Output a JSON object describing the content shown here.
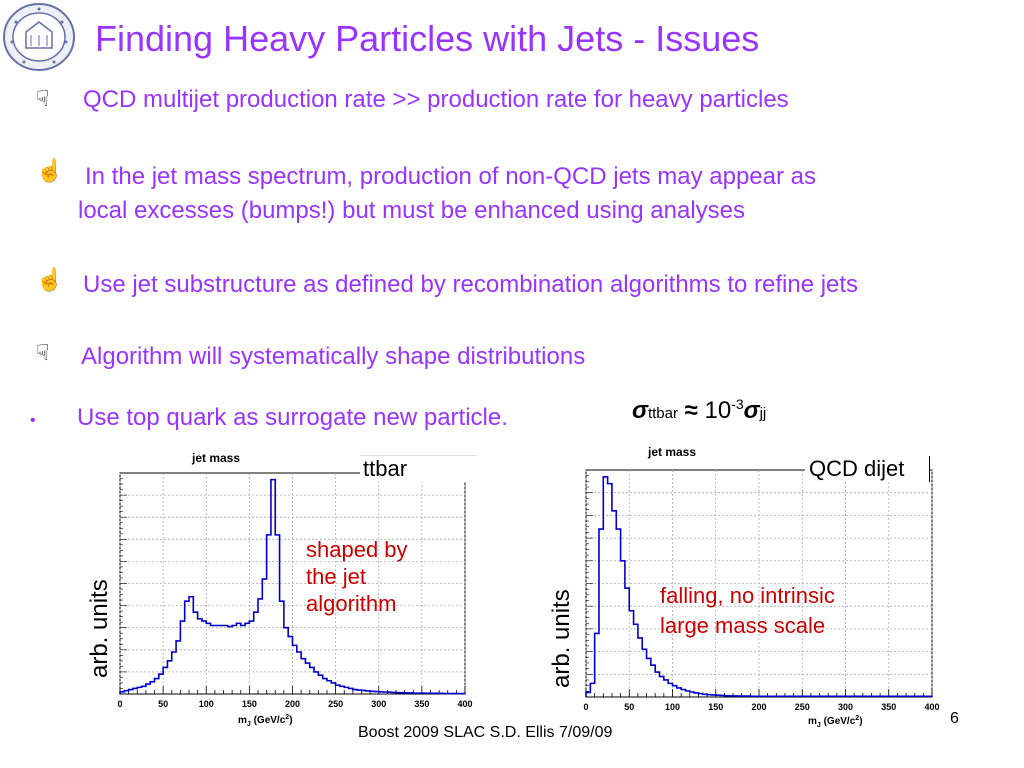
{
  "title": "Finding Heavy Particles with Jets - Issues",
  "bullets": [
    {
      "icon": "thumbs-down-icon",
      "text": "QCD multijet production rate >> production rate for heavy particles"
    },
    {
      "icon": "thumbs-up-icon",
      "line1": "In the jet mass spectrum, production of non-QCD jets may appear as",
      "line2": "local excesses (bumps!) but must be enhanced using analyses"
    },
    {
      "icon": "thumbs-up-icon",
      "text": "Use jet substructure as defined by recombination algorithms to refine jets"
    },
    {
      "icon": "thumbs-down-icon",
      "text": "Algorithm will systematically shape distributions"
    }
  ],
  "sub_bullet": {
    "marker": "•",
    "text": "Use top quark as surrogate new particle."
  },
  "sigma_relation": {
    "sigma": "σ",
    "sub_left": "ttbar",
    "approx": "≈",
    "base": "10",
    "exp": "-3",
    "sub_right": "jj"
  },
  "annotations": {
    "left": [
      "shaped by",
      "the jet",
      "algorithm"
    ],
    "right": [
      "falling, no intrinsic",
      "large mass scale"
    ]
  },
  "footer": {
    "text": "Boost 2009  SLAC     S.D. Ellis    7/09/09",
    "page": "6"
  },
  "colors": {
    "title": "#9933ff",
    "annotation": "#cc0000",
    "histogram": "#0000cc"
  },
  "chart_data": [
    {
      "type": "area",
      "title": "jet mass",
      "label": "ttbar",
      "xlabel": "m_J (GeV/c²)",
      "xlabel_main": "m",
      "xlabel_sub": "J",
      "xlabel_rest": " (GeV/c",
      "xlabel_sup": "2",
      "xlabel_close": ")",
      "ylabel": "arb. units",
      "xlim": [
        0,
        400
      ],
      "ylim": [
        0,
        1
      ],
      "xticks": [
        0,
        50,
        100,
        150,
        200,
        250,
        300,
        350,
        400
      ],
      "grid": true,
      "bins_x": [
        0,
        5,
        10,
        15,
        20,
        25,
        30,
        35,
        40,
        45,
        50,
        55,
        60,
        65,
        70,
        75,
        80,
        85,
        90,
        95,
        100,
        105,
        110,
        115,
        120,
        125,
        130,
        135,
        140,
        145,
        150,
        155,
        160,
        165,
        170,
        175,
        180,
        185,
        190,
        195,
        200,
        205,
        210,
        215,
        220,
        225,
        230,
        235,
        240,
        245,
        250,
        255,
        260,
        265,
        270,
        275,
        280,
        285,
        290,
        295,
        300,
        305,
        310,
        315,
        320,
        325,
        330,
        335,
        340,
        345,
        350,
        355,
        360,
        365,
        370,
        375,
        380,
        385,
        390,
        395
      ],
      "values": [
        0.01,
        0.015,
        0.02,
        0.025,
        0.03,
        0.035,
        0.045,
        0.055,
        0.07,
        0.09,
        0.12,
        0.15,
        0.19,
        0.24,
        0.33,
        0.42,
        0.44,
        0.37,
        0.34,
        0.33,
        0.32,
        0.31,
        0.31,
        0.31,
        0.31,
        0.305,
        0.31,
        0.32,
        0.31,
        0.32,
        0.33,
        0.37,
        0.43,
        0.52,
        0.72,
        0.97,
        0.72,
        0.42,
        0.3,
        0.26,
        0.22,
        0.19,
        0.16,
        0.14,
        0.12,
        0.1,
        0.085,
        0.07,
        0.06,
        0.05,
        0.04,
        0.035,
        0.03,
        0.025,
        0.02,
        0.018,
        0.016,
        0.014,
        0.012,
        0.011,
        0.01,
        0.009,
        0.008,
        0.007,
        0.006,
        0.006,
        0.005,
        0.005,
        0.004,
        0.004,
        0.004,
        0.003,
        0.003,
        0.003,
        0.003,
        0.002,
        0.002,
        0.002,
        0.002,
        0.002
      ]
    },
    {
      "type": "area",
      "title": "jet mass",
      "label": "QCD dijet",
      "xlabel": "m_J (GeV/c²)",
      "xlabel_main": "m",
      "xlabel_sub": "J",
      "xlabel_rest": " (GeV/c",
      "xlabel_sup": "2",
      "xlabel_close": ")",
      "ylabel": "arb. units",
      "xlim": [
        0,
        400
      ],
      "ylim": [
        0,
        1
      ],
      "xticks": [
        0,
        50,
        100,
        150,
        200,
        250,
        300,
        350,
        400
      ],
      "grid": true,
      "bins_x": [
        0,
        5,
        10,
        15,
        20,
        25,
        30,
        35,
        40,
        45,
        50,
        55,
        60,
        65,
        70,
        75,
        80,
        85,
        90,
        95,
        100,
        105,
        110,
        115,
        120,
        125,
        130,
        135,
        140,
        145,
        150,
        155,
        160,
        165,
        170,
        175,
        180,
        185,
        190,
        195,
        200,
        205,
        210,
        215,
        220,
        225,
        230,
        235,
        240,
        245,
        250,
        255,
        260,
        265,
        270,
        275,
        280,
        285,
        290,
        295,
        300,
        305,
        310,
        315,
        320,
        325,
        330,
        335,
        340,
        345,
        350,
        355,
        360,
        365,
        370,
        375,
        380,
        385,
        390,
        395
      ],
      "values": [
        0.02,
        0.06,
        0.28,
        0.74,
        0.97,
        0.94,
        0.82,
        0.74,
        0.6,
        0.48,
        0.38,
        0.32,
        0.26,
        0.21,
        0.17,
        0.14,
        0.11,
        0.09,
        0.075,
        0.06,
        0.05,
        0.04,
        0.033,
        0.027,
        0.022,
        0.018,
        0.015,
        0.012,
        0.01,
        0.009,
        0.008,
        0.007,
        0.006,
        0.005,
        0.005,
        0.004,
        0.004,
        0.004,
        0.003,
        0.003,
        0.003,
        0.003,
        0.003,
        0.003,
        0.003,
        0.003,
        0.003,
        0.003,
        0.003,
        0.003,
        0.003,
        0.003,
        0.003,
        0.003,
        0.003,
        0.003,
        0.003,
        0.003,
        0.003,
        0.003,
        0.003,
        0.003,
        0.003,
        0.003,
        0.003,
        0.003,
        0.003,
        0.003,
        0.003,
        0.003,
        0.003,
        0.003,
        0.003,
        0.003,
        0.003,
        0.003,
        0.003,
        0.003,
        0.003,
        0.003
      ]
    }
  ]
}
